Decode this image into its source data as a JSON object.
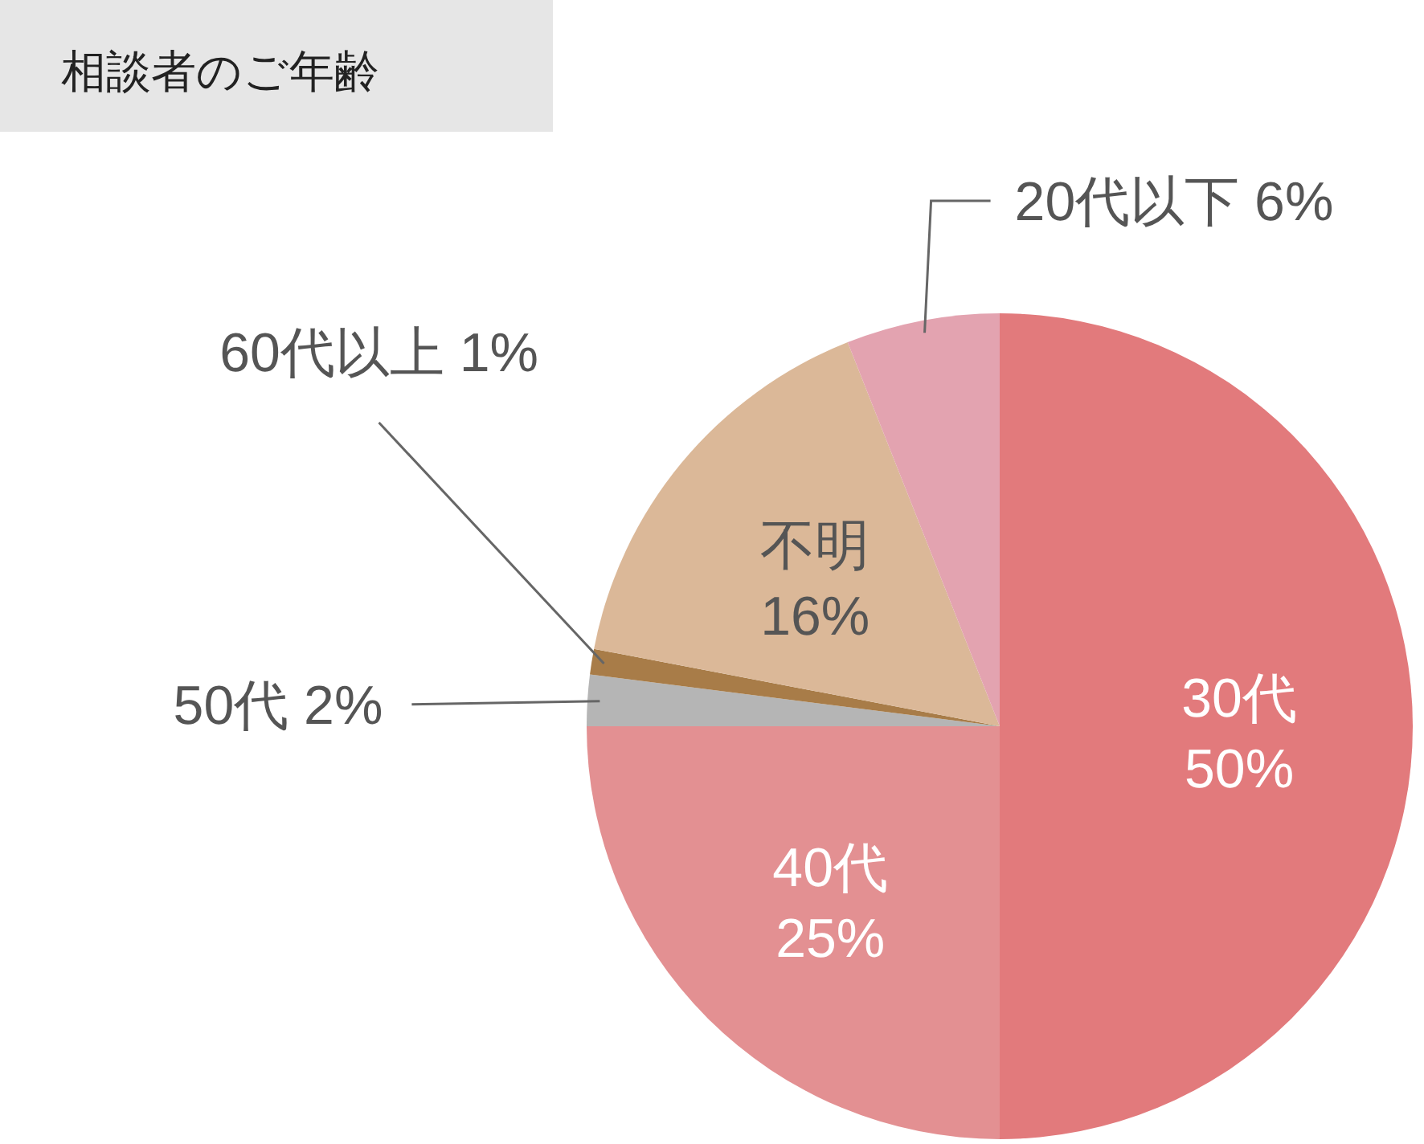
{
  "chart_data": {
    "type": "pie",
    "title": "相談者のご年齢",
    "categories": [
      "30代",
      "40代",
      "50代",
      "60代以上",
      "不明",
      "20代以下"
    ],
    "values": [
      50,
      25,
      2,
      1,
      16,
      6
    ],
    "colors": [
      "#e27a7c",
      "#e39092",
      "#b5b5b5",
      "#a87c48",
      "#dbb898",
      "#e3a3b0"
    ],
    "value_labels": [
      "50%",
      "25%",
      "2%",
      "1%",
      "16%",
      "6%"
    ]
  }
}
